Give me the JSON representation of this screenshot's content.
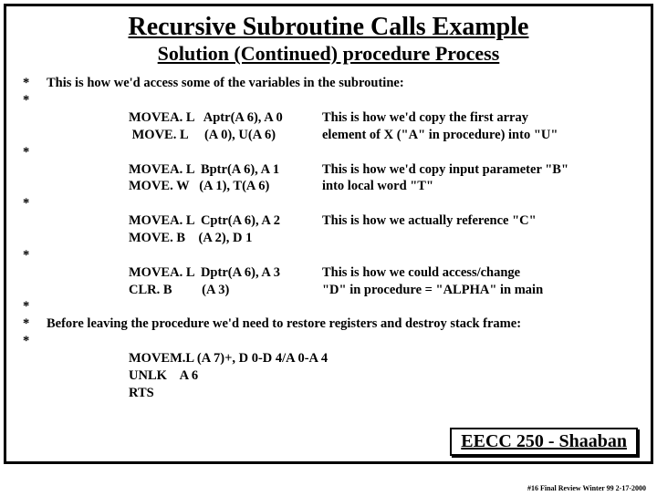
{
  "title": "Recursive Subroutine Calls Example",
  "subtitle": "Solution (Continued)  procedure Process",
  "intro": "This is how we'd access some of the variables in the subroutine:",
  "blocks": [
    {
      "code1": "MOVEA. L   Aptr(A 6), A 0",
      "desc1": "This is how we'd copy the first array",
      "code2": " MOVE. L     (A 0), U(A 6)",
      "desc2": " element of  X (\"A\" in procedure) into \"U\""
    },
    {
      "code1": "MOVEA. L  Bptr(A 6), A 1",
      "desc1": "This is how we'd copy input parameter  \"B\"",
      "code2": "MOVE. W   (A 1), T(A 6)",
      "desc2": " into local word  \"T\""
    },
    {
      "code1": "MOVEA. L  Cptr(A 6), A 2",
      "desc1": "This is how we actually reference  \"C\"",
      "code2": "MOVE. B    (A 2), D 1",
      "desc2": ""
    },
    {
      "code1": "MOVEA. L  Dptr(A 6), A 3",
      "desc1": "This is how we could access/change",
      "code2": "CLR. B         (A 3)",
      "desc2": "\"D\" in procedure  = \"ALPHA\" in main"
    }
  ],
  "restore_note": "Before leaving the procedure we'd need to restore registers and destroy stack frame:",
  "tail": {
    "l1": "MOVEM.L (A 7)+, D 0-D 4/A 0-A 4",
    "l2": "UNLK    A 6",
    "l3": "RTS"
  },
  "footer_box": "EECC 250 - Shaaban",
  "small_footer": "#16  Final Review  Winter 99   2-17-2000"
}
